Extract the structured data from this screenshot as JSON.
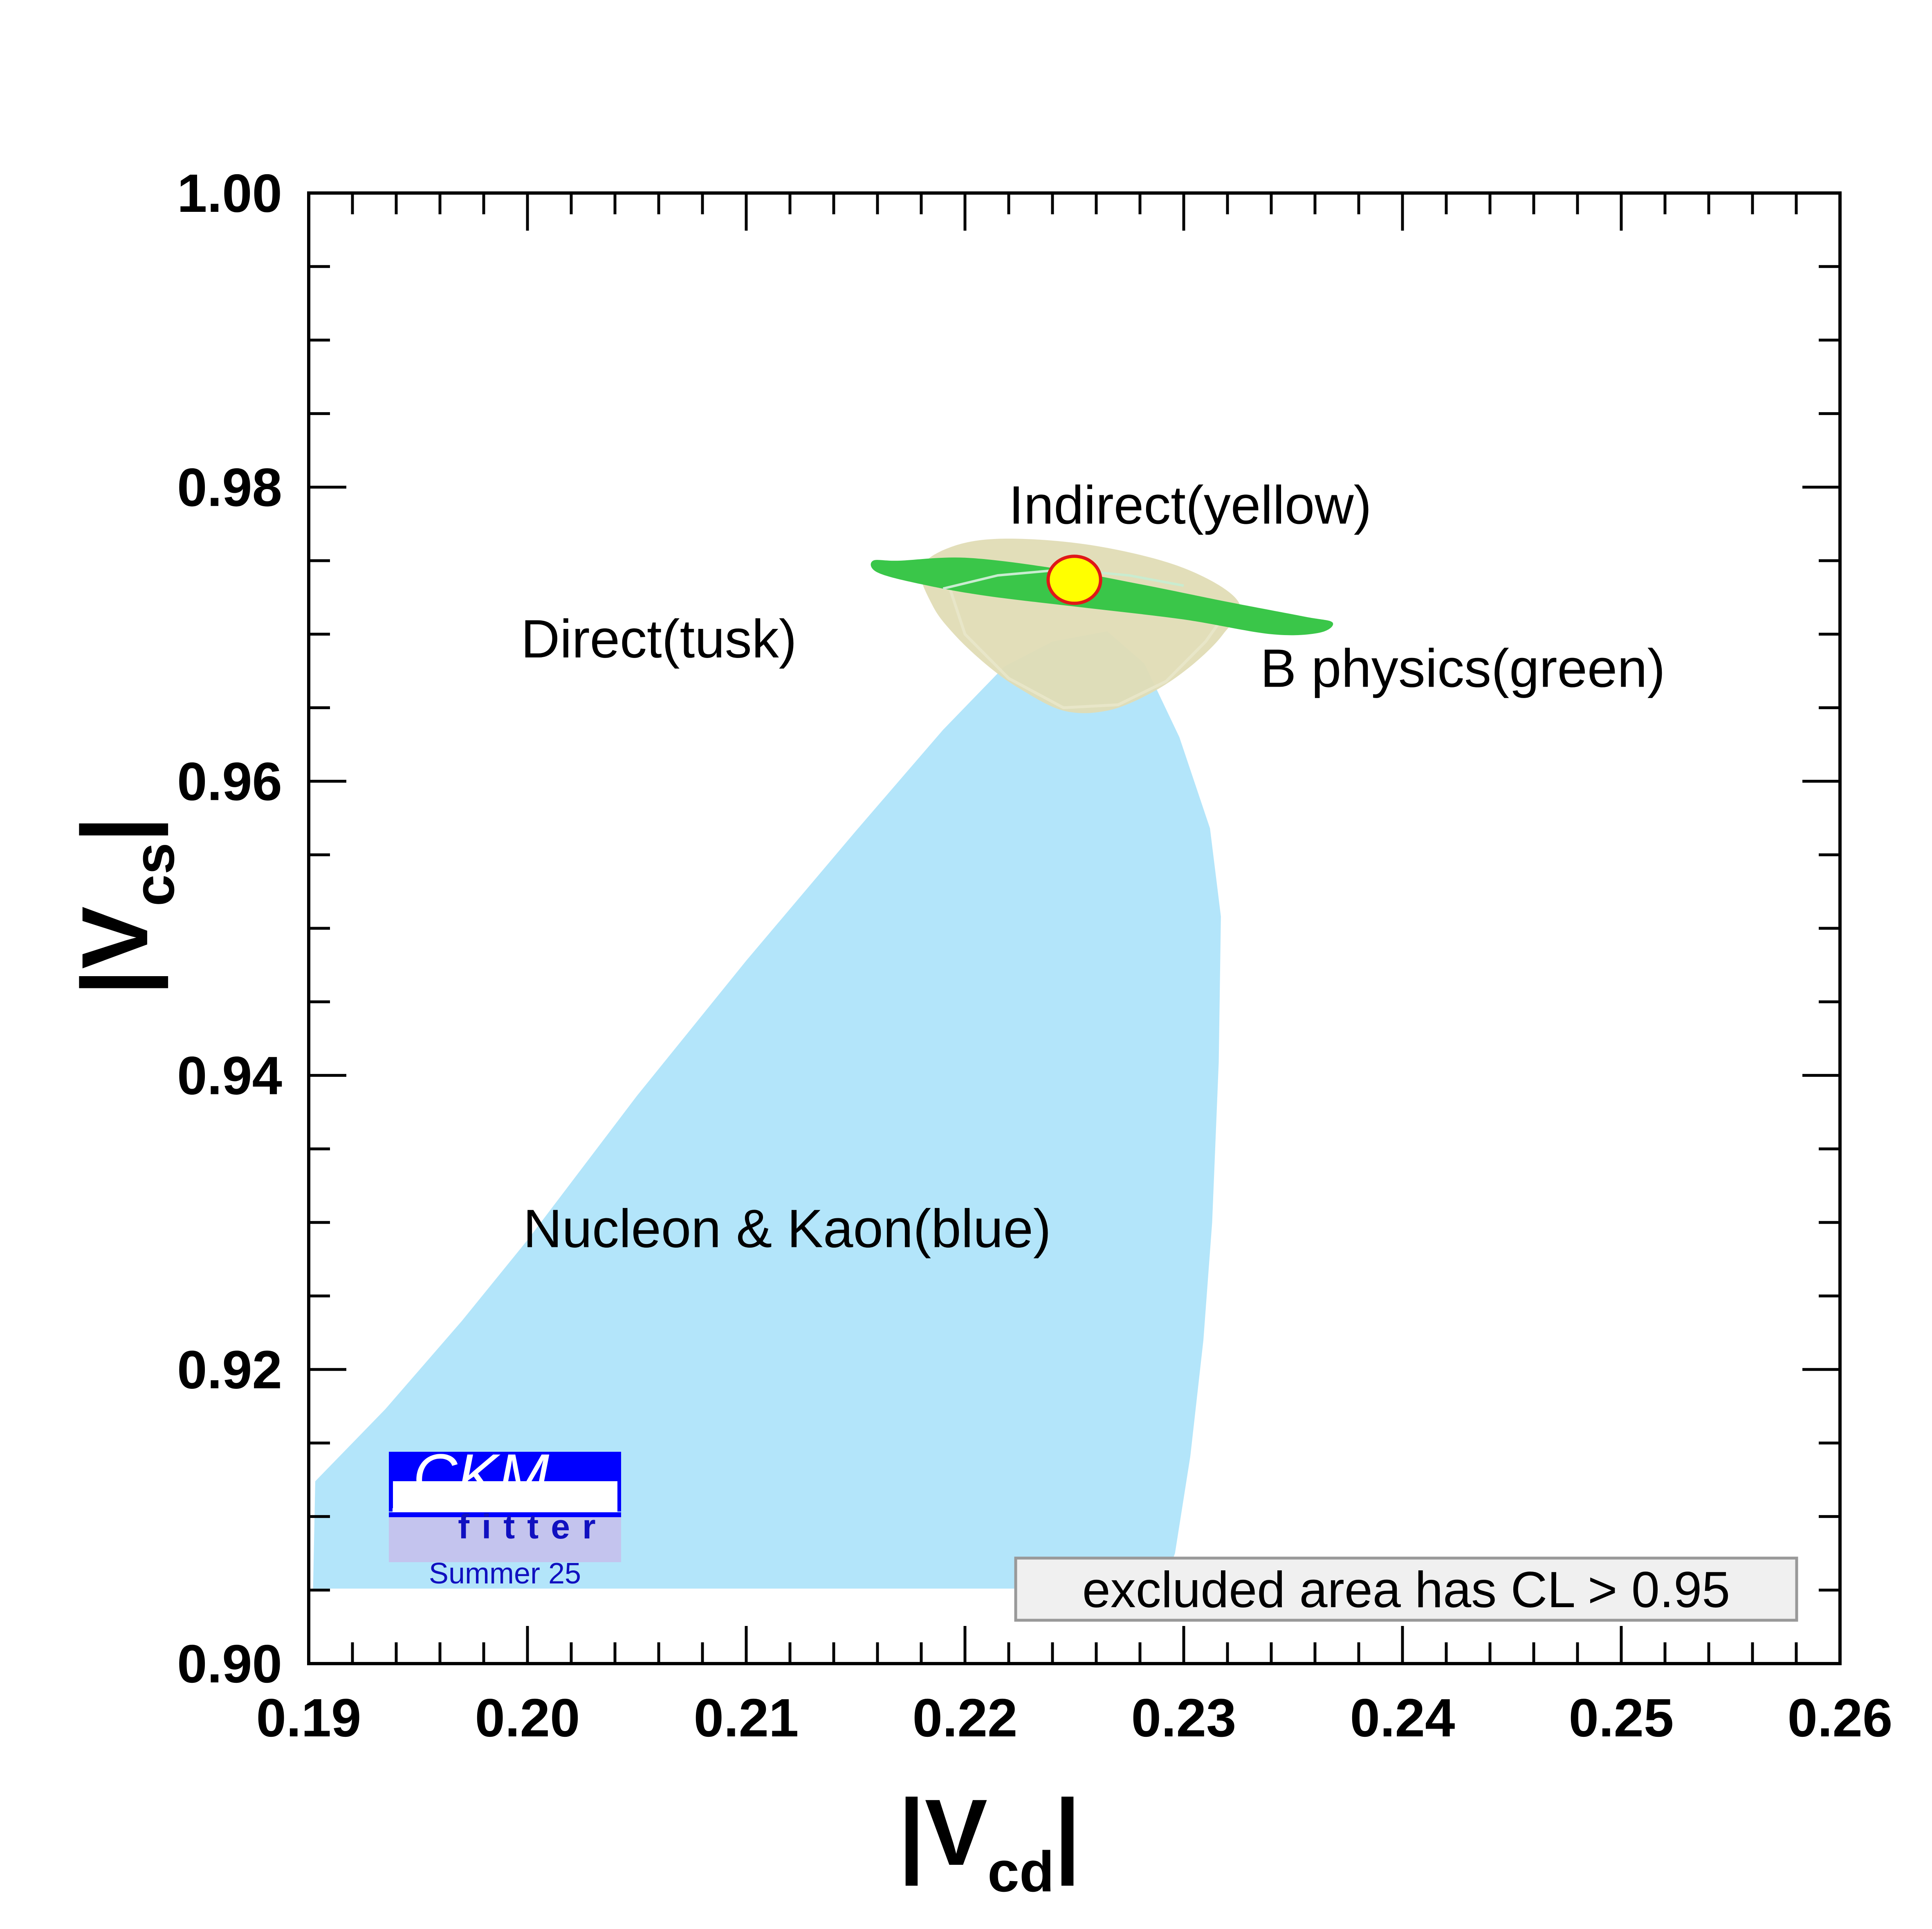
{
  "chart_data": {
    "type": "contour",
    "xlabel_main": "|V",
    "xlabel_sub": "cd",
    "xlabel_end": "|",
    "ylabel_main": "|V",
    "ylabel_sub": "cs",
    "ylabel_end": "|",
    "xlim": [
      0.19,
      0.26
    ],
    "ylim": [
      0.9,
      1.0
    ],
    "x_ticks": [
      "0.19",
      "0.20",
      "0.21",
      "0.22",
      "0.23",
      "0.24",
      "0.25",
      "0.26"
    ],
    "y_ticks": [
      "0.90",
      "0.92",
      "0.94",
      "0.96",
      "0.98",
      "1.00"
    ],
    "colors": {
      "blue": "#b3e5fa",
      "tusk": "#e0dcb5",
      "green": "#3ac649",
      "indirect_fill": "#ffff00",
      "indirect_stroke": "#e01818",
      "frame": "#000000"
    },
    "regions": [
      {
        "name": "Nucleon & Kaon(blue)",
        "points": [
          [
            0.1902,
            0.9051
          ],
          [
            0.1903,
            0.9124
          ],
          [
            0.1935,
            0.9173
          ],
          [
            0.197,
            0.9233
          ],
          [
            0.2,
            0.9288
          ],
          [
            0.205,
            0.9386
          ],
          [
            0.21,
            0.9478
          ],
          [
            0.215,
            0.9566
          ],
          [
            0.219,
            0.9635
          ],
          [
            0.2218,
            0.9678
          ],
          [
            0.224,
            0.9695
          ],
          [
            0.2265,
            0.9702
          ],
          [
            0.2282,
            0.968
          ],
          [
            0.2298,
            0.963
          ],
          [
            0.2312,
            0.9568
          ],
          [
            0.2317,
            0.9508
          ],
          [
            0.2316,
            0.9409
          ],
          [
            0.2313,
            0.93
          ],
          [
            0.2309,
            0.922
          ],
          [
            0.2303,
            0.9141
          ],
          [
            0.2296,
            0.9075
          ],
          [
            0.229,
            0.9051
          ]
        ]
      },
      {
        "name": "Direct(tusk)",
        "points": [
          [
            0.2185,
            0.972
          ],
          [
            0.2195,
            0.97
          ],
          [
            0.221,
            0.9679
          ],
          [
            0.2225,
            0.9663
          ],
          [
            0.2245,
            0.9648
          ],
          [
            0.2265,
            0.9648
          ],
          [
            0.2285,
            0.966
          ],
          [
            0.2303,
            0.9678
          ],
          [
            0.2318,
            0.97
          ],
          [
            0.2325,
            0.9722
          ],
          [
            0.23,
            0.9745
          ],
          [
            0.226,
            0.976
          ],
          [
            0.222,
            0.9765
          ],
          [
            0.2195,
            0.976
          ],
          [
            0.218,
            0.9745
          ]
        ]
      },
      {
        "name": "B physics(green)",
        "points": [
          [
            0.217,
            0.975
          ],
          [
            0.22,
            0.9752
          ],
          [
            0.224,
            0.9745
          ],
          [
            0.228,
            0.9734
          ],
          [
            0.232,
            0.9722
          ],
          [
            0.2355,
            0.9712
          ],
          [
            0.2368,
            0.9708
          ],
          [
            0.2362,
            0.9701
          ],
          [
            0.234,
            0.97
          ],
          [
            0.23,
            0.971
          ],
          [
            0.2255,
            0.9718
          ],
          [
            0.221,
            0.9726
          ],
          [
            0.218,
            0.9734
          ],
          [
            0.216,
            0.9742
          ],
          [
            0.2158,
            0.975
          ]
        ]
      },
      {
        "name": "Indirect(yellow)",
        "center": [
          0.225,
          0.9737
        ],
        "rx": 0.0012,
        "ry": 0.0016
      }
    ],
    "annotations": [
      {
        "text": "Indirect(yellow)",
        "x": 0.222,
        "y": 0.9788
      },
      {
        "text": "Direct(tusk)",
        "x": 0.1997,
        "y": 0.9697
      },
      {
        "text": "B physics(green)",
        "x": 0.2335,
        "y": 0.9677
      },
      {
        "text": "Nucleon & Kaon(blue)",
        "x": 0.1998,
        "y": 0.9296
      }
    ],
    "legend_text": "excluded area has CL > 0.95",
    "logo": {
      "line1": "CKM",
      "line2": "fitter",
      "line3": "Summer 25"
    }
  }
}
